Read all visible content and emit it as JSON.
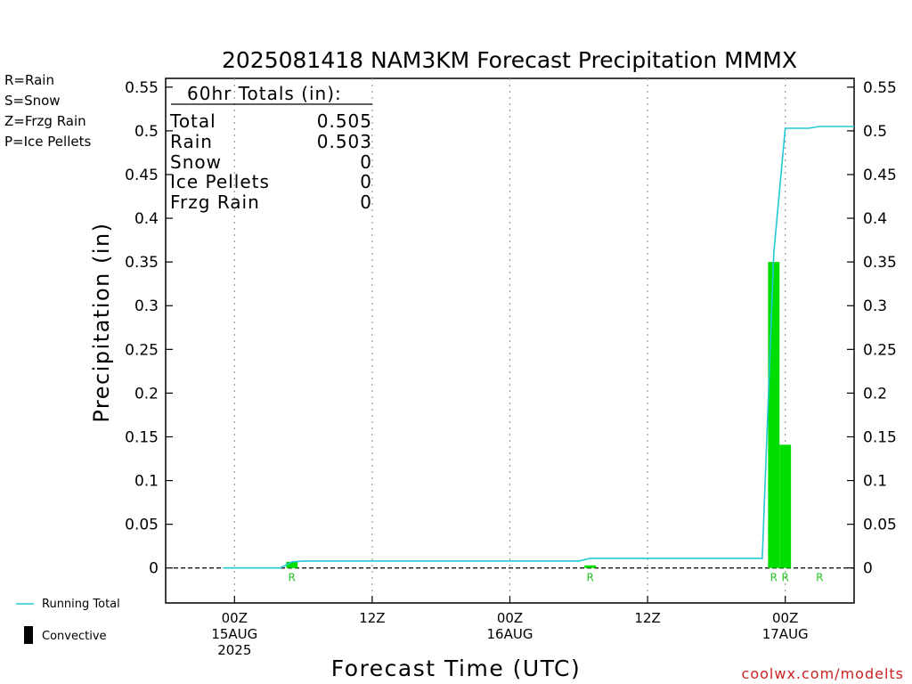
{
  "title": "2025081418 NAM3KM Forecast Precipitation MMMX",
  "ptype_legend": [
    {
      "label": "R=Rain",
      "color": "#22c422"
    },
    {
      "label": "S=Snow",
      "color": "#3a3af0"
    },
    {
      "label": "Z=Frzg Rain",
      "color": "#f08a30"
    },
    {
      "label": "P=Ice Pellets",
      "color": "#e0188c"
    }
  ],
  "totals": {
    "header": "60hr Totals (in):",
    "rows": [
      {
        "label": "Total",
        "value": "0.505"
      },
      {
        "label": "Rain",
        "value": "0.503"
      },
      {
        "label": "Snow",
        "value": "0"
      },
      {
        "label": "Ice Pellets",
        "value": "0"
      },
      {
        "label": "Frzg Rain",
        "value": "0"
      }
    ]
  },
  "bottom_legend": {
    "running_total": "Running Total",
    "convective": "Convective"
  },
  "watermark": "coolwx.com/modelts",
  "colors": {
    "bar": "#00dd00",
    "running_total": "#22c8d4",
    "rain_label": "#22c422",
    "grid": "#999999"
  },
  "chart_data": {
    "type": "bar",
    "title": "2025081418 NAM3KM Forecast Precipitation MMMX",
    "xlabel": "Forecast Time (UTC)",
    "ylabel": "Precipitation (in)",
    "xlim": [
      "2025-08-14 18Z",
      "2025-08-17 06Z"
    ],
    "ylim": [
      -0.04,
      0.56
    ],
    "y_ticks": [
      0,
      0.05,
      0.1,
      0.15,
      0.2,
      0.25,
      0.3,
      0.35,
      0.4,
      0.45,
      0.5,
      0.55
    ],
    "y_tick_labels": [
      "0",
      "0.05",
      "0.1",
      "0.15",
      "0.2",
      "0.25",
      "0.3",
      "0.35",
      "0.4",
      "0.45",
      "0.5",
      "0.55"
    ],
    "x_ticks": [
      {
        "time": "2025-08-15 00Z",
        "lines": [
          "00Z",
          "15AUG",
          "2025"
        ]
      },
      {
        "time": "2025-08-15 12Z",
        "lines": [
          "12Z"
        ]
      },
      {
        "time": "2025-08-16 00Z",
        "lines": [
          "00Z",
          "16AUG"
        ]
      },
      {
        "time": "2025-08-16 12Z",
        "lines": [
          "12Z"
        ]
      },
      {
        "time": "2025-08-17 00Z",
        "lines": [
          "00Z",
          "17AUG"
        ]
      }
    ],
    "grid": "vertical dotted at 12h ticks",
    "bars": [
      {
        "time": "2025-08-15 05Z",
        "value": 0.007,
        "ptype": "R"
      },
      {
        "time": "2025-08-16 07Z",
        "value": 0.003,
        "ptype": "R"
      },
      {
        "time": "2025-08-16 23Z",
        "value": 0.35,
        "ptype": "R"
      },
      {
        "time": "2025-08-17 00Z",
        "value": 0.141,
        "ptype": "R"
      },
      {
        "time": "2025-08-17 03Z",
        "value": 0.0,
        "ptype": "R"
      }
    ],
    "running_total": [
      {
        "time": "2025-08-14 23Z",
        "value": 0
      },
      {
        "time": "2025-08-15 04Z",
        "value": 0
      },
      {
        "time": "2025-08-15 05Z",
        "value": 0.007
      },
      {
        "time": "2025-08-15 06Z",
        "value": 0.008
      },
      {
        "time": "2025-08-16 06Z",
        "value": 0.008
      },
      {
        "time": "2025-08-16 07Z",
        "value": 0.011
      },
      {
        "time": "2025-08-16 22Z",
        "value": 0.011
      },
      {
        "time": "2025-08-16 23Z",
        "value": 0.36
      },
      {
        "time": "2025-08-17 00Z",
        "value": 0.503
      },
      {
        "time": "2025-08-17 02Z",
        "value": 0.503
      },
      {
        "time": "2025-08-17 03Z",
        "value": 0.505
      },
      {
        "time": "2025-08-17 06Z",
        "value": 0.505
      }
    ]
  }
}
